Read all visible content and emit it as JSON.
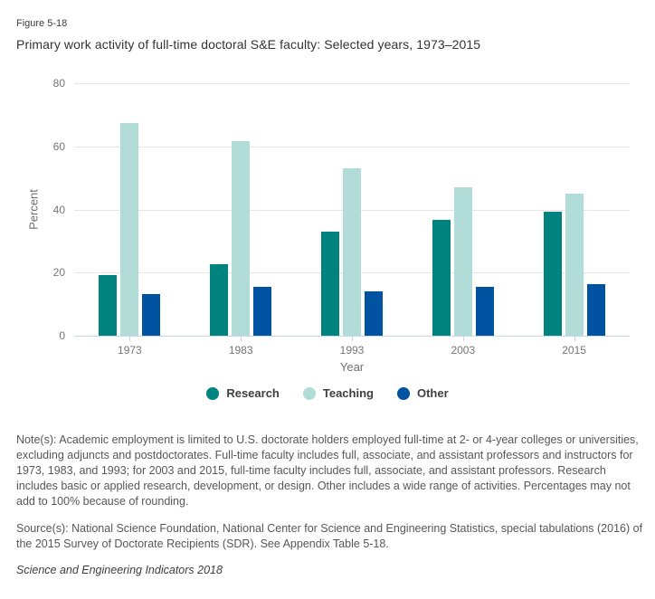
{
  "figure_label": "Figure 5-18",
  "title": "Primary work activity of full-time doctoral S&E faculty: Selected years, 1973–2015",
  "chart_data": {
    "type": "bar",
    "title": "Primary work activity of full-time doctoral S&E faculty: Selected years, 1973–2015",
    "categories": [
      "1973",
      "1983",
      "1993",
      "2003",
      "2015"
    ],
    "series": [
      {
        "name": "Research",
        "color": "#00837E",
        "values": [
          19.3,
          22.6,
          33.0,
          36.6,
          39.2
        ]
      },
      {
        "name": "Teaching",
        "color": "#B1DCD7",
        "values": [
          67.5,
          61.7,
          53.0,
          47.1,
          44.9
        ]
      },
      {
        "name": "Other",
        "color": "#0053A1",
        "values": [
          13.2,
          15.4,
          14.1,
          15.6,
          16.3
        ]
      }
    ],
    "xlabel": "Year",
    "ylabel": "Percent",
    "ylim": [
      0,
      80
    ],
    "y_ticks": [
      0,
      20,
      40,
      60,
      80
    ],
    "grid": true,
    "legend_position": "bottom",
    "colors": {
      "gridline": "#e5e5e5",
      "axis_line": "#c9d6e8"
    }
  },
  "notes": "Note(s): Academic employment is limited to U.S. doctorate holders employed full-time at 2- or 4-year colleges or universities, excluding adjuncts and postdoctorates. Full-time faculty includes full, associate, and assistant professors and instructors for 1973, 1983, and 1993; for 2003 and 2015, full-time faculty includes full, associate, and assistant professors. Research includes basic or applied research, development, or design. Other includes a wide range of activities. Percentages may not add to 100% because of rounding.",
  "source": "Source(s): National Science Foundation, National Center for Science and Engineering Statistics, special tabulations (2016) of the 2015 Survey of Doctorate Recipients (SDR). See Appendix Table 5-18.",
  "footer": "Science and Engineering Indicators 2018"
}
